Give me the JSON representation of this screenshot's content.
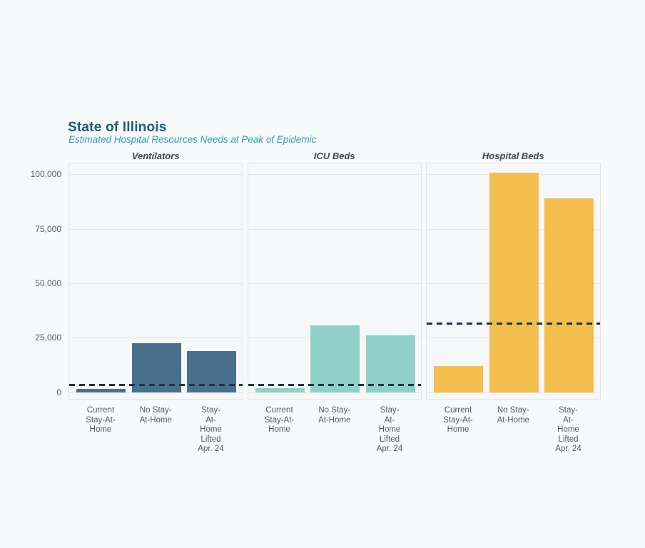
{
  "header": {
    "title": "State of Illinois",
    "subtitle": "Estimated Hospital Resources Needs at Peak of Epidemic",
    "title_color": "#1d5b77",
    "subtitle_color": "#2e9ab8"
  },
  "chart_data": {
    "type": "bar",
    "title": "State of Illinois",
    "subtitle": "Estimated Hospital Resources Needs at Peak of Epidemic",
    "categories": [
      "Current\nStay-At-\nHome",
      "No Stay-\nAt-Home",
      "Stay-\nAt-Home\nLifted\nApr. 24"
    ],
    "y_ticks": [
      0,
      25000,
      50000,
      75000,
      100000
    ],
    "y_tick_labels": [
      "0",
      "25,000",
      "50,000",
      "75,000",
      "100,000"
    ],
    "ylim": [
      0,
      105000
    ],
    "grid": true,
    "legend": "none",
    "capacity_line_style": "dashed",
    "capacity_line_color": "#1e3448",
    "facets": [
      {
        "title": "Ventilators",
        "bar_color": "#48708a",
        "values": [
          1600,
          22400,
          18900
        ],
        "capacity_line": 3300
      },
      {
        "title": "ICU Beds",
        "bar_color": "#8fd0c8",
        "values": [
          1800,
          30600,
          26100
        ],
        "capacity_line": 3300
      },
      {
        "title": "Hospital Beds",
        "bar_color": "#f2bf4e",
        "values": [
          11900,
          100800,
          89100
        ],
        "capacity_line": 31300
      }
    ]
  }
}
